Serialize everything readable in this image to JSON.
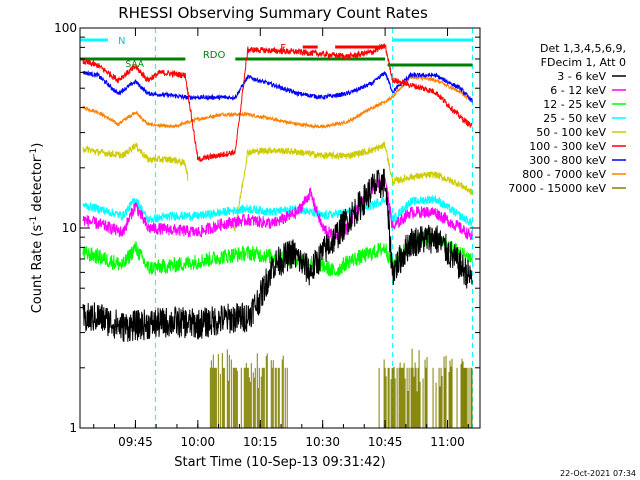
{
  "chart_data": {
    "type": "line",
    "title": "RHESSI Observing Summary Count Rates",
    "xlabel": "Start Time (10-Sep-13 09:31:42)",
    "ylabel_main": "Count Rate (s",
    "ylabel_sup": "-1",
    "ylabel_tail": " detector",
    "ylabel_end": ")",
    "y_scale": "log",
    "ylim": [
      1,
      100
    ],
    "xlim": [
      9.528,
      11.13
    ],
    "x_ticks": [
      {
        "label": "09:45",
        "value": 9.75
      },
      {
        "label": "10:00",
        "value": 10.0
      },
      {
        "label": "10:15",
        "value": 10.25
      },
      {
        "label": "10:30",
        "value": 10.5
      },
      {
        "label": "10:45",
        "value": 10.75
      },
      {
        "label": "11:00",
        "value": 11.0
      }
    ],
    "y_ticks": [
      {
        "label": "1",
        "value": 1
      },
      {
        "label": "10",
        "value": 10
      },
      {
        "label": "100",
        "value": 100
      }
    ],
    "legend": {
      "placement": "right",
      "header": [
        "Det 1,3,4,5,6,9,",
        "FDecim 1, Att 0"
      ],
      "items": [
        {
          "label": "3 - 6 keV",
          "color": "#000000"
        },
        {
          "label": "6 - 12 keV",
          "color": "#ff00ff"
        },
        {
          "label": "12 - 25 keV",
          "color": "#00ff00"
        },
        {
          "label": "25 - 50 keV",
          "color": "#00ffff"
        },
        {
          "label": "50 - 100 keV",
          "color": "#cccc00"
        },
        {
          "label": "100 - 300 keV",
          "color": "#ff0000"
        },
        {
          "label": "300 - 800 keV",
          "color": "#0000ff"
        },
        {
          "label": "800 - 7000 keV",
          "color": "#ff8000"
        },
        {
          "label": "7000 - 15000 keV",
          "color": "#808000"
        }
      ]
    },
    "annotations": {
      "night_label": "N",
      "flare_label": "F",
      "saa_label": "SAA",
      "rdo_label": "RDO",
      "timestamp": "22-Oct-2021 07:34"
    },
    "segments": {
      "night": [
        [
          9.528,
          9.64
        ],
        [
          10.78,
          11.1
        ]
      ],
      "flare": [
        [
          10.42,
          10.48
        ],
        [
          10.55,
          10.72
        ],
        [
          10.7,
          10.75
        ]
      ],
      "rdo": [
        [
          9.528,
          9.95
        ],
        [
          10.15,
          10.75
        ],
        [
          10.76,
          11.1
        ]
      ],
      "saa": [
        [
          9.64,
          9.85
        ]
      ],
      "cyan_vlines": [
        9.83,
        10.78,
        11.1
      ]
    },
    "series": [
      {
        "name": "3 - 6 keV",
        "color": "#000000",
        "noise": 0.18,
        "dots": true,
        "points": [
          [
            9.54,
            3.5
          ],
          [
            9.6,
            3.6
          ],
          [
            9.7,
            3.2
          ],
          [
            9.8,
            3.3
          ],
          [
            9.9,
            3.4
          ],
          [
            10.0,
            3.3
          ],
          [
            10.1,
            3.5
          ],
          [
            10.2,
            3.6
          ],
          [
            10.25,
            4.5
          ],
          [
            10.3,
            6.5
          ],
          [
            10.38,
            7.5
          ],
          [
            10.45,
            6
          ],
          [
            10.5,
            7.5
          ],
          [
            10.55,
            9
          ],
          [
            10.6,
            11
          ],
          [
            10.65,
            13
          ],
          [
            10.7,
            16
          ],
          [
            10.75,
            17
          ],
          [
            10.78,
            6
          ],
          [
            10.85,
            8.5
          ],
          [
            10.95,
            9
          ],
          [
            11.05,
            6.5
          ],
          [
            11.1,
            5.5
          ]
        ],
        "gaps": [
          [
            9.528,
            9.95
          ],
          [
            10.15,
            10.25
          ]
        ]
      },
      {
        "name": "6 - 12 keV",
        "color": "#ff00ff",
        "noise": 0.07,
        "points": [
          [
            9.54,
            11
          ],
          [
            9.6,
            10.5
          ],
          [
            9.7,
            9.5
          ],
          [
            9.75,
            13
          ],
          [
            9.8,
            10
          ],
          [
            9.9,
            9.8
          ],
          [
            10.0,
            9.5
          ],
          [
            10.1,
            10.5
          ],
          [
            10.2,
            11
          ],
          [
            10.3,
            10.5
          ],
          [
            10.4,
            12
          ],
          [
            10.45,
            15
          ],
          [
            10.5,
            10
          ],
          [
            10.55,
            9
          ],
          [
            10.6,
            10
          ],
          [
            10.65,
            13
          ],
          [
            10.7,
            16
          ],
          [
            10.75,
            18
          ],
          [
            10.78,
            10
          ],
          [
            10.85,
            12
          ],
          [
            10.95,
            12
          ],
          [
            11.05,
            10
          ],
          [
            11.1,
            9
          ]
        ]
      },
      {
        "name": "12 - 25 keV",
        "color": "#00ff00",
        "noise": 0.09,
        "points": [
          [
            9.54,
            7.5
          ],
          [
            9.6,
            7.2
          ],
          [
            9.7,
            6.5
          ],
          [
            9.75,
            8
          ],
          [
            9.8,
            6.3
          ],
          [
            9.9,
            6.5
          ],
          [
            10.0,
            6.8
          ],
          [
            10.1,
            7.2
          ],
          [
            10.2,
            7.5
          ],
          [
            10.3,
            7.2
          ],
          [
            10.4,
            7
          ],
          [
            10.5,
            6.5
          ],
          [
            10.55,
            6
          ],
          [
            10.6,
            6.8
          ],
          [
            10.7,
            7.5
          ],
          [
            10.75,
            8
          ],
          [
            10.78,
            6.5
          ],
          [
            10.85,
            8.5
          ],
          [
            10.95,
            9
          ],
          [
            11.05,
            7.5
          ],
          [
            11.1,
            7
          ]
        ]
      },
      {
        "name": "25 - 50 keV",
        "color": "#00ffff",
        "noise": 0.05,
        "points": [
          [
            9.54,
            13
          ],
          [
            9.6,
            12.5
          ],
          [
            9.7,
            11.5
          ],
          [
            9.75,
            14
          ],
          [
            9.8,
            11
          ],
          [
            9.9,
            11.5
          ],
          [
            10.0,
            11.5
          ],
          [
            10.1,
            12
          ],
          [
            10.2,
            12.5
          ],
          [
            10.3,
            12
          ],
          [
            10.4,
            12.5
          ],
          [
            10.5,
            11.5
          ],
          [
            10.6,
            12
          ],
          [
            10.7,
            13
          ],
          [
            10.75,
            14
          ],
          [
            10.78,
            11
          ],
          [
            10.85,
            13.5
          ],
          [
            10.95,
            14
          ],
          [
            11.05,
            11.5
          ],
          [
            11.1,
            10.5
          ]
        ]
      },
      {
        "name": "50 - 100 keV",
        "color": "#cccc00",
        "noise": 0.04,
        "points": [
          [
            9.54,
            25
          ],
          [
            9.6,
            24
          ],
          [
            9.7,
            23
          ],
          [
            9.75,
            26
          ],
          [
            9.8,
            22
          ],
          [
            9.9,
            22
          ],
          [
            9.95,
            21
          ],
          [
            10.0,
            9.5
          ],
          [
            10.15,
            10
          ],
          [
            10.2,
            24
          ],
          [
            10.3,
            24.5
          ],
          [
            10.4,
            24
          ],
          [
            10.5,
            23
          ],
          [
            10.6,
            23
          ],
          [
            10.7,
            24.5
          ],
          [
            10.75,
            26
          ],
          [
            10.78,
            17
          ],
          [
            10.85,
            18
          ],
          [
            10.95,
            18.5
          ],
          [
            11.05,
            16.5
          ],
          [
            11.1,
            15
          ]
        ],
        "gaps": [
          [
            9.96,
            10.14
          ]
        ]
      },
      {
        "name": "100 - 300 keV",
        "color": "#ff0000",
        "noise": 0.035,
        "points": [
          [
            9.54,
            68
          ],
          [
            9.6,
            65
          ],
          [
            9.68,
            55
          ],
          [
            9.75,
            64
          ],
          [
            9.8,
            55
          ],
          [
            9.85,
            60
          ],
          [
            9.95,
            58
          ],
          [
            10.0,
            22
          ],
          [
            10.15,
            24
          ],
          [
            10.2,
            78
          ],
          [
            10.3,
            77
          ],
          [
            10.4,
            76
          ],
          [
            10.5,
            74
          ],
          [
            10.6,
            72
          ],
          [
            10.7,
            76
          ],
          [
            10.75,
            82
          ],
          [
            10.78,
            55
          ],
          [
            10.85,
            52
          ],
          [
            10.95,
            48
          ],
          [
            11.05,
            36
          ],
          [
            11.1,
            32
          ]
        ]
      },
      {
        "name": "300 - 800 keV",
        "color": "#0000ff",
        "noise": 0.025,
        "points": [
          [
            9.54,
            60
          ],
          [
            9.6,
            58
          ],
          [
            9.68,
            47
          ],
          [
            9.75,
            54
          ],
          [
            9.8,
            47
          ],
          [
            9.9,
            46
          ],
          [
            9.95,
            45
          ],
          [
            10.0,
            45
          ],
          [
            10.15,
            45
          ],
          [
            10.2,
            57
          ],
          [
            10.3,
            52
          ],
          [
            10.4,
            47
          ],
          [
            10.5,
            45
          ],
          [
            10.6,
            47
          ],
          [
            10.7,
            53
          ],
          [
            10.75,
            60
          ],
          [
            10.78,
            48
          ],
          [
            10.85,
            58
          ],
          [
            10.95,
            58
          ],
          [
            11.05,
            50
          ],
          [
            11.1,
            43
          ]
        ]
      },
      {
        "name": "800 - 7000 keV",
        "color": "#ff8000",
        "noise": 0.02,
        "points": [
          [
            9.54,
            40
          ],
          [
            9.6,
            38
          ],
          [
            9.68,
            33
          ],
          [
            9.75,
            38
          ],
          [
            9.8,
            33
          ],
          [
            9.9,
            32
          ],
          [
            10.0,
            35
          ],
          [
            10.1,
            37
          ],
          [
            10.2,
            37
          ],
          [
            10.3,
            35
          ],
          [
            10.4,
            33
          ],
          [
            10.5,
            32
          ],
          [
            10.6,
            34
          ],
          [
            10.7,
            40
          ],
          [
            10.75,
            43
          ],
          [
            10.78,
            45
          ],
          [
            10.85,
            57
          ],
          [
            10.95,
            55
          ],
          [
            11.05,
            48
          ],
          [
            11.1,
            43
          ]
        ]
      },
      {
        "name": "7000 - 15000 keV",
        "color": "#808000",
        "noise": 0.0,
        "bars": true,
        "points": [
          [
            10.05,
            2
          ],
          [
            10.1,
            1.8
          ],
          [
            10.2,
            2
          ],
          [
            10.3,
            1.5
          ],
          [
            10.78,
            3
          ],
          [
            10.82,
            2.5
          ],
          [
            10.86,
            2
          ],
          [
            10.95,
            2
          ],
          [
            11.05,
            2
          ],
          [
            11.1,
            2
          ]
        ]
      }
    ]
  }
}
